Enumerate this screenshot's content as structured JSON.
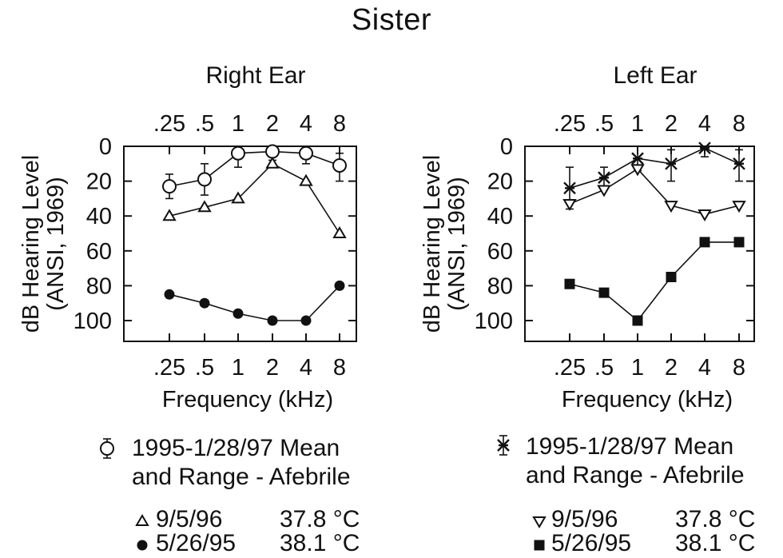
{
  "title": "Sister",
  "chart_data": [
    {
      "type": "line",
      "title": "Right Ear",
      "xlabel": "Frequency (kHz)",
      "ylabel": "dB Hearing Level",
      "ylabel2": "(ANSI, 1969)",
      "categories": [
        ".25",
        ".5",
        "1",
        "2",
        "4",
        "8"
      ],
      "yticks": [
        "0",
        "20",
        "40",
        "60",
        "80",
        "100"
      ],
      "ylim": [
        0,
        110
      ],
      "y_inverted": true,
      "series": [
        {
          "name": "1995-1/28/97 Mean and Range - Afebrile",
          "marker": "open-circle",
          "values": [
            23,
            19,
            4,
            3,
            4,
            11
          ],
          "range_low": [
            16,
            10,
            0,
            0,
            0,
            4
          ],
          "range_high": [
            30,
            28,
            12,
            8,
            10,
            20
          ]
        },
        {
          "name": "9/5/96 37.8 °C",
          "marker": "open-triangle-up",
          "values": [
            40,
            35,
            30,
            10,
            20,
            50
          ]
        },
        {
          "name": "5/26/95 38.1 °C",
          "marker": "filled-circle",
          "values": [
            85,
            90,
            96,
            100,
            100,
            80
          ]
        }
      ]
    },
    {
      "type": "line",
      "title": "Left Ear",
      "xlabel": "Frequency (kHz)",
      "ylabel": "dB Hearing Level",
      "ylabel2": "(ANSI, 1969)",
      "categories": [
        ".25",
        ".5",
        "1",
        "2",
        "4",
        "8"
      ],
      "yticks": [
        "0",
        "20",
        "40",
        "60",
        "80",
        "100"
      ],
      "ylim": [
        0,
        110
      ],
      "y_inverted": true,
      "series": [
        {
          "name": "1995-1/28/97 Mean and Range - Afebrile",
          "marker": "asterisk",
          "values": [
            24,
            18,
            7,
            10,
            1,
            10
          ],
          "range_low": [
            12,
            12,
            0,
            2,
            0,
            2
          ],
          "range_high": [
            36,
            24,
            14,
            20,
            6,
            20
          ]
        },
        {
          "name": "9/5/96 37.8 °C",
          "marker": "open-triangle-down",
          "values": [
            33,
            25,
            13,
            34,
            39,
            34
          ]
        },
        {
          "name": "5/26/95 38.1 °C",
          "marker": "filled-square",
          "values": [
            79,
            84,
            100,
            75,
            55,
            55
          ]
        }
      ]
    }
  ],
  "legends": [
    {
      "mean_line1": "1995-1/28/97  Mean",
      "mean_line2": "and Range - Afebrile",
      "items": [
        {
          "date": "9/5/96",
          "temp": "37.8 °C"
        },
        {
          "date": "5/26/95",
          "temp": "38.1 °C"
        }
      ]
    },
    {
      "mean_line1": "1995-1/28/97  Mean",
      "mean_line2": "and Range - Afebrile",
      "items": [
        {
          "date": "9/5/96",
          "temp": "37.8 °C"
        },
        {
          "date": "5/26/95",
          "temp": "38.1 °C"
        }
      ]
    }
  ]
}
